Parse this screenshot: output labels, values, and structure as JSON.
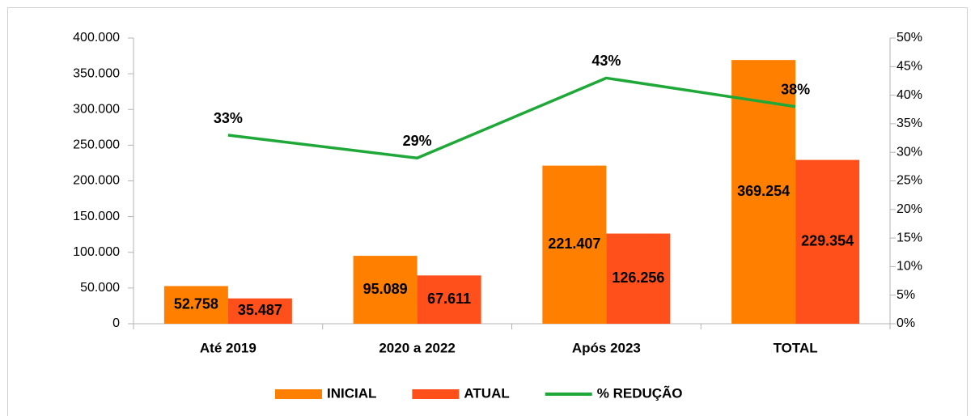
{
  "chart_data": {
    "type": "bar",
    "categories": [
      "Até 2019",
      "2020 a 2022",
      "Após 2023",
      "TOTAL"
    ],
    "series": [
      {
        "name": "INICIAL",
        "color": "#ff8000",
        "values": [
          52758,
          95089,
          221407,
          369254
        ],
        "value_labels": [
          "52.758",
          "95.089",
          "221.407",
          "369.254"
        ]
      },
      {
        "name": "ATUAL",
        "color": "#ff4f1a",
        "values": [
          35487,
          67611,
          126256,
          229354
        ],
        "value_labels": [
          "35.487",
          "67.611",
          "126.256",
          "229.354"
        ]
      },
      {
        "name": "% REDUÇÃO",
        "color": "#1ea838",
        "type": "line",
        "axis": "y2",
        "values": [
          33,
          29,
          43,
          38
        ],
        "value_labels": [
          "33%",
          "29%",
          "43%",
          "38%"
        ]
      }
    ],
    "ylim": [
      0,
      400000
    ],
    "yticks": [
      0,
      {
        "value": 50000,
        "label": "50.000"
      },
      {
        "value": 100000,
        "label": "100.000"
      },
      {
        "value": 150000,
        "label": "150.000"
      },
      {
        "value": 200000,
        "label": "200.000"
      },
      {
        "value": 250000,
        "label": "250.000"
      },
      {
        "value": 300000,
        "label": "300.000"
      },
      {
        "value": 350000,
        "label": "350.000"
      },
      {
        "value": 400000,
        "label": "400.000"
      }
    ],
    "y2lim": [
      0,
      50
    ],
    "y2ticks": [
      {
        "value": 0,
        "label": "0%"
      },
      {
        "value": 5,
        "label": "5%"
      },
      {
        "value": 10,
        "label": "10%"
      },
      {
        "value": 15,
        "label": "15%"
      },
      {
        "value": 20,
        "label": "20%"
      },
      {
        "value": 25,
        "label": "25%"
      },
      {
        "value": 30,
        "label": "30%"
      },
      {
        "value": 35,
        "label": "35%"
      },
      {
        "value": 40,
        "label": "40%"
      },
      {
        "value": 45,
        "label": "45%"
      },
      {
        "value": 50,
        "label": "50%"
      }
    ],
    "grid": false,
    "legend": "bottom"
  }
}
